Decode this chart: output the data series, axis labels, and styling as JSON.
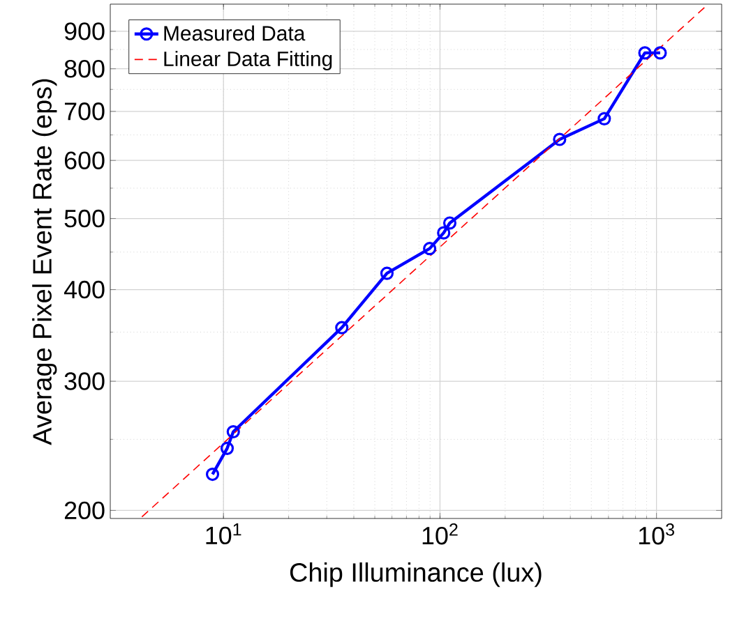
{
  "chart_data": {
    "type": "line",
    "xlabel": "Chip Illuminance (lux)",
    "ylabel": "Average Pixel Event Rate (eps)",
    "log": "xy",
    "grid": true,
    "legend": "top left",
    "xlim": [
      3,
      2000
    ],
    "ylim": [
      195,
      980
    ],
    "xticks": [
      {
        "value": 10,
        "label": "10$^{1}$"
      },
      {
        "value": 100,
        "label": "10$^{2}$"
      },
      {
        "value": 1000,
        "label": "10$^{3}$"
      }
    ],
    "yticks": [
      200,
      300,
      400,
      500,
      600,
      700,
      800,
      900
    ],
    "series": [
      {
        "name": "Measured Data",
        "color": "#0000ff",
        "marker": "circle",
        "line_style": "solid",
        "x": [
          8.9,
          10.4,
          11.1,
          35.2,
          56.9,
          89.6,
          104,
          111,
          357,
          574,
          884,
          1040
        ],
        "values": [
          224,
          243,
          256,
          355,
          421,
          455,
          478,
          493,
          641,
          684,
          841,
          841
        ]
      },
      {
        "name": "Linear Data Fitting",
        "color": "#ff0000",
        "marker": "none",
        "line_style": "dashed",
        "x": [
          4.2,
          1700
        ],
        "values": [
          196,
          975
        ]
      }
    ]
  }
}
